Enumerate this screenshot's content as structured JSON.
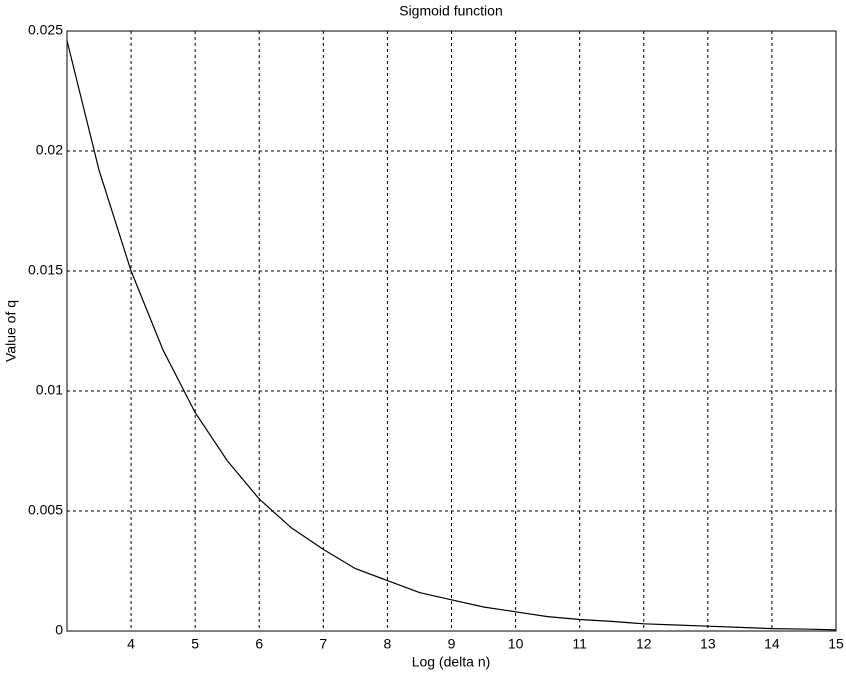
{
  "chart_data": {
    "type": "line",
    "title": "Sigmoid function",
    "x_label": "Log (delta n)",
    "y_label": "Value of q",
    "x": [
      3,
      3.5,
      4,
      4.5,
      5,
      5.5,
      6,
      6.5,
      7,
      7.5,
      8,
      8.5,
      9,
      9.5,
      10,
      10.5,
      11,
      11.5,
      12,
      12.5,
      13,
      13.5,
      14,
      14.5,
      15
    ],
    "series": [
      {
        "color": "#000000",
        "values": [
          0.0246,
          0.0192,
          0.015,
          0.0117,
          0.0091,
          0.0071,
          0.0055,
          0.0043,
          0.0034,
          0.0026,
          0.0021,
          0.0016,
          0.0013,
          0.001,
          0.0008,
          0.0006,
          0.00048,
          0.0004,
          0.0003,
          0.00025,
          0.0002,
          0.00015,
          0.0001,
          8e-05,
          5e-05
        ]
      }
    ],
    "xlim": [
      3,
      15
    ],
    "xticks": [
      4,
      5,
      6,
      7,
      8,
      9,
      10,
      11,
      12,
      13,
      14,
      15
    ],
    "ylim": [
      0,
      0.025
    ],
    "yticks": [
      0,
      0.005,
      0.01,
      0.015,
      0.02,
      0.025
    ],
    "grid": true
  }
}
